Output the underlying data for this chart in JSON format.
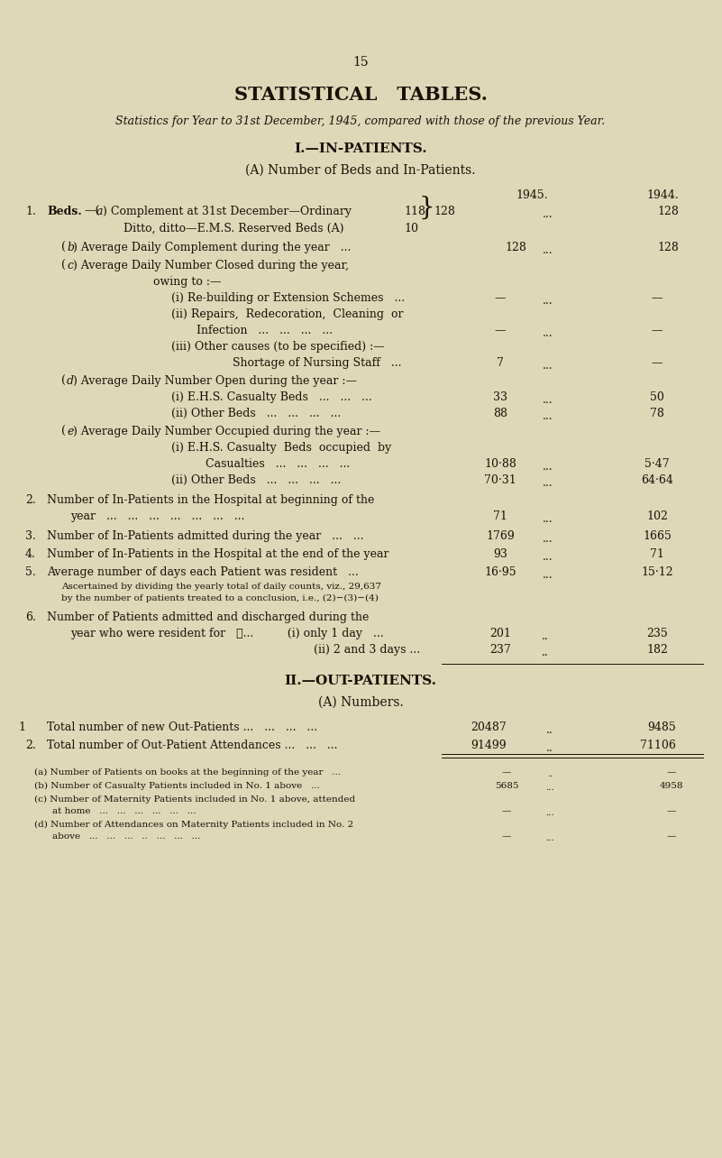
{
  "bg": "#ddd9b8",
  "tc": "#1a1008",
  "page_num": "15",
  "title": "STATISTICAL   TABLES.",
  "subtitle": "Statistics for Year to 31st December, 1945, compared with those of the previous Year.",
  "sec1": "I.—IN-PATIENTS.",
  "sec1a": "(A) Number of Beds and In-Patients.",
  "col1": "1945.",
  "col2": "1944.",
  "sec2": "II.—OUT-PATIENTS.",
  "sec2a": "(A) Numbers."
}
